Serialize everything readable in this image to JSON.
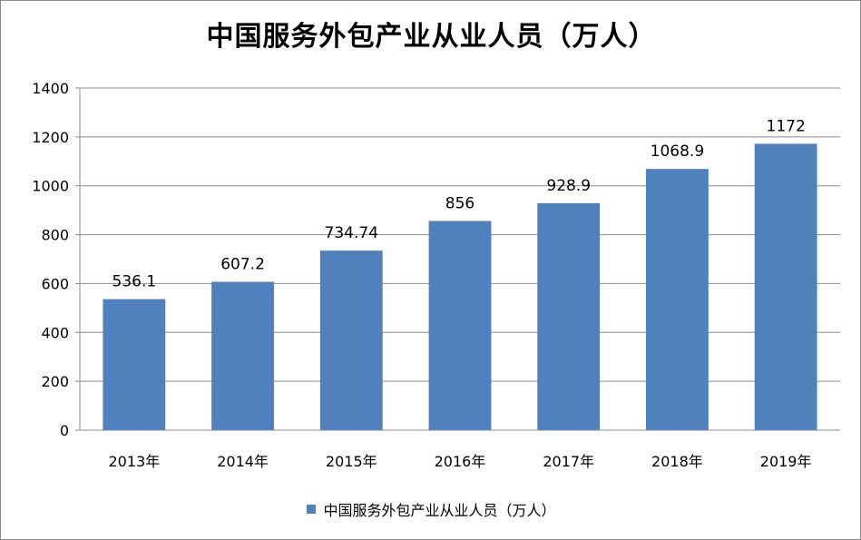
{
  "chart_data": {
    "type": "bar",
    "title": "中国服务外包产业从业人员（万人）",
    "categories": [
      "2013年",
      "2014年",
      "2015年",
      "2016年",
      "2017年",
      "2018年",
      "2019年"
    ],
    "series": [
      {
        "name": "中国服务外包产业从业人员（万人）",
        "values": [
          536.1,
          607.2,
          734.74,
          856,
          928.9,
          1068.9,
          1172
        ],
        "labels": [
          "536.1",
          "607.2",
          "734.74",
          "856",
          "928.9",
          "1068.9",
          "1172"
        ],
        "color": "#4F81BD"
      }
    ],
    "ylim": [
      0,
      1400
    ],
    "yticks": [
      0,
      200,
      400,
      600,
      800,
      1000,
      1200,
      1400
    ],
    "grid": true,
    "legend": "bottom"
  }
}
